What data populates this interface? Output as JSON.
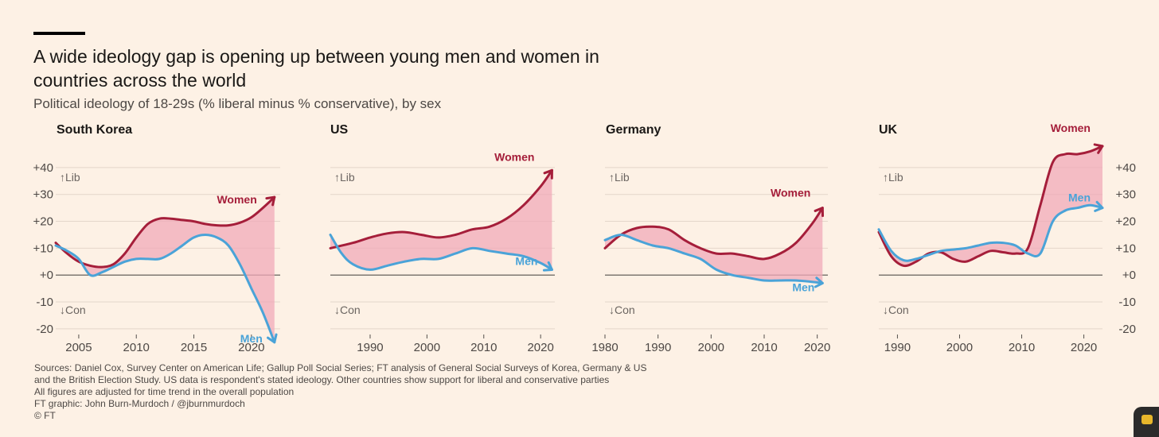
{
  "title": "A wide ideology gap is opening up between young men and women in countries across the world",
  "subtitle": "Political ideology of 18-29s (% liberal minus % conservative), by sex",
  "colors": {
    "women": "#a51e3a",
    "men": "#4aa3d8",
    "gap_fill": "#f0a9b8",
    "background": "#fdf1e5"
  },
  "axis_labels": {
    "lib": "Lib",
    "con": "Con"
  },
  "footer": {
    "sources": "Sources: Daniel Cox, Survey Center on American Life; Gallup Poll Social Series; FT analysis of General Social Surveys of Korea, Germany & US",
    "sources_2": "and the British Election Study. US data is respondent's stated ideology. Other countries show support for liberal and conservative parties",
    "note": "All figures are adjusted for time trend in the overall population",
    "credit": "FT graphic: John Burn-Murdoch / @jburnmurdoch",
    "copyright": "© FT"
  },
  "chart_data": [
    {
      "type": "line",
      "title": "South Korea",
      "xlim": [
        2003,
        2022.5
      ],
      "xticks": [
        2005,
        2010,
        2015,
        2020
      ],
      "ylim": [
        -23,
        45
      ],
      "yticks": [
        -20,
        -10,
        0,
        10,
        20,
        30,
        40
      ],
      "ytick_labels": [
        "-20",
        "-10",
        "+0",
        "+10",
        "+20",
        "+30",
        "+40"
      ],
      "series": [
        {
          "name": "Women",
          "x": [
            2003,
            2004,
            2005,
            2006,
            2007,
            2008,
            2009,
            2010,
            2011,
            2012,
            2013,
            2014,
            2015,
            2016,
            2017,
            2018,
            2019,
            2020,
            2021,
            2022
          ],
          "values": [
            12,
            8,
            5,
            3.5,
            3,
            4,
            8,
            14,
            19,
            21,
            21,
            20.5,
            20,
            19,
            18.5,
            18.5,
            19.5,
            21.5,
            25,
            29
          ]
        },
        {
          "name": "Men",
          "x": [
            2003,
            2004,
            2005,
            2006,
            2007,
            2008,
            2009,
            2010,
            2011,
            2012,
            2013,
            2014,
            2015,
            2016,
            2017,
            2018,
            2019,
            2020,
            2021,
            2022
          ],
          "values": [
            11,
            9,
            6,
            0,
            1,
            3,
            5,
            6,
            6,
            6,
            8,
            11,
            14,
            15,
            14,
            11,
            4,
            -5,
            -14,
            -25
          ]
        }
      ]
    },
    {
      "type": "line",
      "title": "US",
      "xlim": [
        1983,
        2022.5
      ],
      "xticks": [
        1990,
        2000,
        2010,
        2020
      ],
      "ylim": [
        -23,
        45
      ],
      "yticks": [
        -20,
        -10,
        0,
        10,
        20,
        30,
        40
      ],
      "series": [
        {
          "name": "Women",
          "x": [
            1983,
            1987,
            1990,
            1993,
            1996,
            1999,
            2002,
            2005,
            2008,
            2011,
            2014,
            2017,
            2020,
            2022
          ],
          "values": [
            10,
            12,
            14,
            15.5,
            16,
            15,
            14,
            15,
            17,
            18,
            21,
            26,
            33,
            39
          ]
        },
        {
          "name": "Men",
          "x": [
            1983,
            1985,
            1987,
            1990,
            1993,
            1996,
            1999,
            2002,
            2005,
            2008,
            2011,
            2014,
            2017,
            2020,
            2022
          ],
          "values": [
            15,
            8,
            4,
            2,
            3.5,
            5,
            6,
            6,
            8,
            10,
            9,
            8,
            7,
            4.5,
            2
          ]
        }
      ]
    },
    {
      "type": "line",
      "title": "Germany",
      "xlim": [
        1980,
        2022
      ],
      "xticks": [
        1980,
        1990,
        2000,
        2010,
        2020
      ],
      "ylim": [
        -23,
        45
      ],
      "yticks": [
        -20,
        -10,
        0,
        10,
        20,
        30,
        40
      ],
      "series": [
        {
          "name": "Women",
          "x": [
            1980,
            1983,
            1986,
            1989,
            1992,
            1995,
            1998,
            2001,
            2004,
            2007,
            2010,
            2013,
            2016,
            2019,
            2021
          ],
          "values": [
            10,
            15,
            17.5,
            18,
            17,
            13,
            10,
            8,
            8,
            7,
            6,
            8,
            12,
            19,
            25
          ]
        },
        {
          "name": "Men",
          "x": [
            1980,
            1983,
            1986,
            1989,
            1992,
            1995,
            1998,
            2001,
            2004,
            2007,
            2010,
            2013,
            2016,
            2019,
            2021
          ],
          "values": [
            13,
            15,
            13,
            11,
            10,
            8,
            6,
            2,
            0,
            -1,
            -2,
            -2,
            -2,
            -2.5,
            -3
          ]
        }
      ]
    },
    {
      "type": "line",
      "title": "UK",
      "xlim": [
        1987,
        2023
      ],
      "xticks": [
        1990,
        2000,
        2010,
        2020
      ],
      "ylim": [
        -23,
        45
      ],
      "yticks": [
        -20,
        -10,
        0,
        10,
        20,
        30,
        40
      ],
      "y_axis_side": "right",
      "series": [
        {
          "name": "Women",
          "x": [
            1987,
            1989,
            1991,
            1993,
            1995,
            1997,
            1999,
            2001,
            2003,
            2005,
            2007,
            2009,
            2011,
            2013,
            2015,
            2017,
            2019,
            2021,
            2023
          ],
          "values": [
            16,
            7,
            3.5,
            5,
            8,
            8.5,
            6,
            5,
            7,
            9,
            8.5,
            8,
            10,
            26,
            42,
            45,
            45,
            46,
            48
          ]
        },
        {
          "name": "Men",
          "x": [
            1987,
            1989,
            1991,
            1993,
            1995,
            1997,
            1999,
            2001,
            2003,
            2005,
            2007,
            2009,
            2011,
            2013,
            2015,
            2017,
            2019,
            2021,
            2023
          ],
          "values": [
            17,
            9,
            5.5,
            6,
            7.5,
            9,
            9.5,
            10,
            11,
            12,
            12,
            11,
            8,
            8,
            20,
            24,
            25,
            26,
            25
          ]
        }
      ]
    }
  ]
}
